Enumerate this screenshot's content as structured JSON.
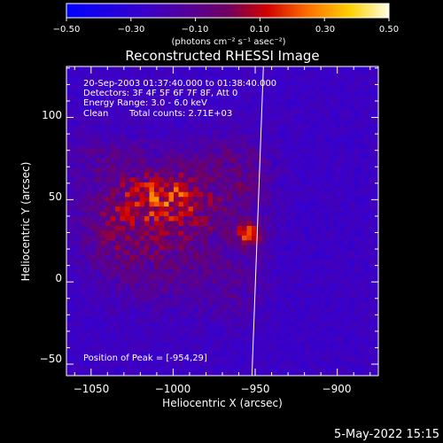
{
  "chart_data": {
    "type": "heatmap",
    "title": "Reconstructed RHESSI Image",
    "xlabel": "Heliocentric X (arcsec)",
    "ylabel": "Heliocentric Y (arcsec)",
    "xlim": [
      -1065,
      -875
    ],
    "ylim": [
      -57,
      131
    ],
    "x_ticks": [
      -1050,
      -1000,
      -950,
      -900
    ],
    "y_ticks": [
      -50,
      0,
      50,
      100
    ],
    "x_tick_labels": [
      "−1050",
      "−1000",
      "−950",
      "−900"
    ],
    "y_tick_labels": [
      "−50",
      "0",
      "50",
      "100"
    ],
    "colorbar": {
      "range": [
        -0.5,
        0.5
      ],
      "ticks": [
        -0.5,
        -0.3,
        -0.1,
        0.1,
        0.3,
        0.5
      ],
      "tick_labels": [
        "−0.50",
        "−0.30",
        "−0.10",
        "0.10",
        "0.30",
        "0.50"
      ],
      "unit_label": "(photons cm⁻² s⁻¹ asec⁻²)",
      "colormap": "blue-purple-red-yellow-white"
    },
    "annotations": {
      "line1": "20-Sep-2003 01:37:40.000 to 01:38:40.000",
      "line2": "Detectors: 3F 4F 5F 6F 7F 8F, Att 0",
      "line3": "Energy Range: 3.0 - 6.0 keV",
      "line4_method": "Clean",
      "line4_counts": "Total counts: 2.71E+03",
      "peak": "Position of Peak = [-954,29]"
    },
    "peak": {
      "x": -954,
      "y": 29,
      "value": 0.5
    },
    "emission_blobs": [
      {
        "x": -1005,
        "y": 53,
        "sx": 16,
        "sy": 11,
        "amp": 0.2
      },
      {
        "x": -990,
        "y": 45,
        "sx": 24,
        "sy": 16,
        "amp": 0.1
      },
      {
        "x": -1035,
        "y": 38,
        "sx": 16,
        "sy": 20,
        "amp": 0.14
      },
      {
        "x": -1000,
        "y": 15,
        "sx": 30,
        "sy": 22,
        "amp": 0.12
      },
      {
        "x": -1040,
        "y": 75,
        "sx": 18,
        "sy": 14,
        "amp": 0.08
      },
      {
        "x": -975,
        "y": 75,
        "sx": 20,
        "sy": 12,
        "amp": 0.08
      },
      {
        "x": -955,
        "y": 60,
        "sx": 12,
        "sy": 18,
        "amp": 0.08
      },
      {
        "x": -960,
        "y": -5,
        "sx": 10,
        "sy": 14,
        "amp": 0.06
      }
    ],
    "background_level": -0.24,
    "limb_line": {
      "x_top": -945,
      "y_top": 131,
      "x_bottom": -952,
      "y_bottom": -57
    }
  },
  "footer": {
    "timestamp": "5-May-2022 15:15"
  },
  "colors": {
    "background": "#000000",
    "text": "#ffffff",
    "limb": "#ffffff"
  }
}
